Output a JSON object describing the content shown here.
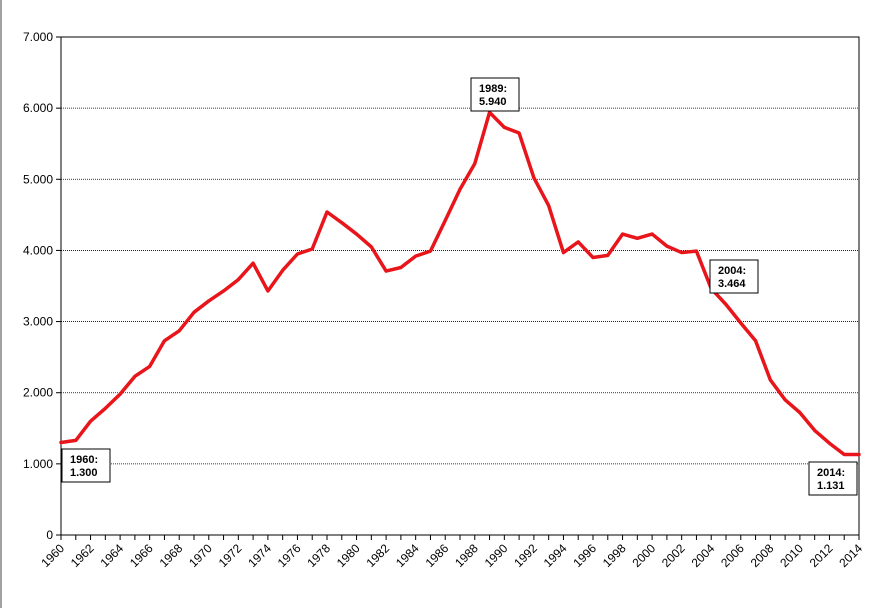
{
  "chart_data": {
    "type": "line",
    "title": "",
    "xlabel": "",
    "ylabel": "",
    "ylim": [
      0,
      7000
    ],
    "xlim": [
      1960,
      2014
    ],
    "grid": "horizontal",
    "y_ticks": [
      "0",
      "1.000",
      "2.000",
      "3.000",
      "4.000",
      "5.000",
      "6.000",
      "7.000"
    ],
    "x_ticks": [
      "1960",
      "1962",
      "1964",
      "1966",
      "1968",
      "1970",
      "1972",
      "1974",
      "1976",
      "1978",
      "1980",
      "1982",
      "1984",
      "1986",
      "1988",
      "1990",
      "1992",
      "1994",
      "1996",
      "1998",
      "2000",
      "2002",
      "2004",
      "2006",
      "2008",
      "2010",
      "2012",
      "2014"
    ],
    "series": [
      {
        "color": "#e8151b",
        "x": [
          1960,
          1961,
          1962,
          1963,
          1964,
          1965,
          1966,
          1967,
          1968,
          1969,
          1970,
          1971,
          1972,
          1973,
          1974,
          1975,
          1976,
          1977,
          1978,
          1979,
          1980,
          1981,
          1982,
          1983,
          1984,
          1985,
          1986,
          1987,
          1988,
          1989,
          1990,
          1991,
          1992,
          1993,
          1994,
          1995,
          1996,
          1997,
          1998,
          1999,
          2000,
          2001,
          2002,
          2003,
          2004,
          2005,
          2006,
          2007,
          2008,
          2009,
          2010,
          2011,
          2012,
          2013,
          2014
        ],
        "values": [
          1300,
          1330,
          1600,
          1780,
          1980,
          2230,
          2370,
          2730,
          2870,
          3130,
          3290,
          3430,
          3590,
          3820,
          3430,
          3720,
          3950,
          4020,
          4540,
          4390,
          4230,
          4050,
          3710,
          3760,
          3920,
          3990,
          4420,
          4860,
          5220,
          5940,
          5730,
          5650,
          5020,
          4630,
          3970,
          4120,
          3900,
          3930,
          4230,
          4170,
          4230,
          4060,
          3970,
          3990,
          3464,
          3240,
          2980,
          2730,
          2180,
          1900,
          1720,
          1470,
          1290,
          1131,
          1131
        ]
      }
    ],
    "annotations": [
      {
        "x": 1960,
        "y": 1300,
        "line1": "1960:",
        "line2": "1.300"
      },
      {
        "x": 1989,
        "y": 5940,
        "line1": "1989:",
        "line2": "5.940"
      },
      {
        "x": 2004,
        "y": 3464,
        "line1": "2004:",
        "line2": "3.464"
      },
      {
        "x": 2014,
        "y": 1131,
        "line1": "2014:",
        "line2": "1.131"
      }
    ],
    "colors": {
      "line": "#e8151b",
      "grid": "#000000",
      "axis": "#000000",
      "background": "#ffffff"
    }
  }
}
